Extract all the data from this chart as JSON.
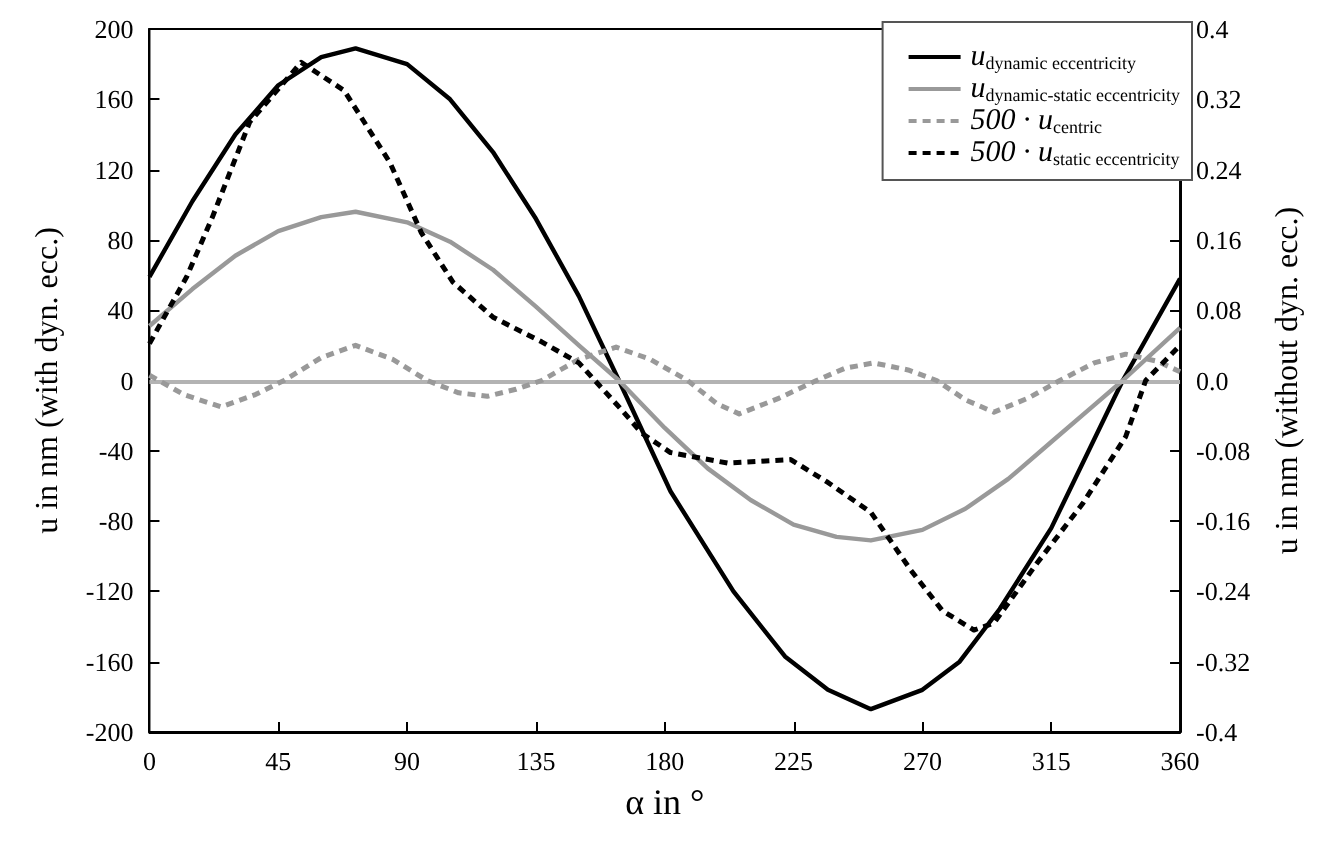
{
  "chart_data": {
    "type": "line",
    "xlabel": "α in °",
    "ylabel": "u in nm (with dyn. ecc.)",
    "y2label": "u in nm (without dyn. ecc.)",
    "xlim": [
      0,
      360
    ],
    "xticks": [
      0,
      45,
      90,
      135,
      180,
      225,
      270,
      315,
      360
    ],
    "ylim": [
      -200,
      200
    ],
    "yticks": [
      -200,
      -160,
      -120,
      -80,
      -40,
      0,
      40,
      80,
      120,
      160,
      200
    ],
    "y2lim": [
      -0.4,
      0.4
    ],
    "y2ticks": [
      -0.4,
      {
        "value": -0.32,
        "label": "-0.32"
      },
      {
        "value": -0.24,
        "label": "-0.24"
      },
      {
        "value": -0.16,
        "label": "-0.16"
      },
      {
        "value": -0.08,
        "label": "-0.08"
      },
      {
        "value": 0,
        "label": "0.0"
      },
      0.08,
      0.16,
      0.24,
      0.32,
      0.4
    ],
    "grid": false,
    "legend": "top right",
    "marker": "none",
    "ref_lines": [
      {
        "axis": "y",
        "value": 0,
        "color": "#b3b3b3"
      }
    ],
    "series": [
      {
        "name": "u$_{dynamic eccentricity}$",
        "color": "#000000",
        "line_style": "solid",
        "x": [
          0,
          15,
          30,
          45,
          60,
          72,
          90,
          105,
          120,
          135,
          150,
          164,
          182,
          204,
          222,
          237,
          252,
          270,
          283,
          297,
          315,
          337,
          340,
          360
        ],
        "values": [
          59,
          102,
          140,
          168,
          184,
          189,
          180,
          160,
          130,
          92,
          48,
          0,
          -63,
          -120,
          -157,
          -176,
          -187,
          -176,
          -160,
          -130,
          -84,
          -10,
          0,
          58
        ]
      },
      {
        "name": "u$_{dynamic-static eccentricity}$",
        "color": "#999999",
        "line_style": "solid",
        "x": [
          0,
          15,
          30,
          45,
          60,
          72,
          90,
          105,
          120,
          135,
          150,
          164,
          180,
          195,
          210,
          225,
          240,
          252,
          270,
          285,
          300,
          315,
          330,
          340,
          360
        ],
        "values": [
          31,
          52,
          71,
          85,
          93,
          96,
          90,
          79,
          63,
          42,
          20,
          0,
          -27,
          -50,
          -68,
          -82,
          -89,
          -91,
          -85,
          -73,
          -56,
          -35,
          -14,
          0,
          30
        ]
      },
      {
        "name": "500 · u$_{centric}$",
        "color": "#999999",
        "line_style": "dashed",
        "x": [
          0,
          12,
          25,
          37,
          47,
          60,
          72,
          85,
          97,
          108,
          118,
          128,
          137,
          150,
          163,
          175,
          188,
          198,
          206,
          220,
          233,
          243,
          253,
          265,
          275,
          285,
          295,
          307,
          318,
          330,
          341,
          352,
          360
        ],
        "values": [
          3,
          -8,
          -15,
          -8,
          0,
          13,
          20,
          12,
          0,
          -7,
          -9,
          -5,
          0,
          12,
          19,
          12,
          0,
          -13,
          -19,
          -10,
          0,
          7,
          10,
          6,
          0,
          -11,
          -18,
          -10,
          0,
          10,
          15,
          11,
          5
        ]
      },
      {
        "name": "500 · u$_{static eccentricity}$",
        "color": "#000000",
        "line_style": "dashed",
        "x": [
          0,
          13,
          22,
          35,
          53,
          68,
          84,
          95,
          106,
          120,
          137,
          150,
          164,
          172,
          182,
          202,
          224,
          237,
          252,
          266,
          277,
          288,
          295,
          310,
          326,
          341,
          348,
          360
        ],
        "values": [
          21,
          59,
          93,
          147,
          181,
          165,
          124,
          84,
          56,
          36,
          22,
          10,
          -15,
          -30,
          -41,
          -47,
          -45,
          -58,
          -75,
          -108,
          -131,
          -142,
          -138,
          -104,
          -70,
          -32,
          0,
          20
        ]
      }
    ]
  }
}
